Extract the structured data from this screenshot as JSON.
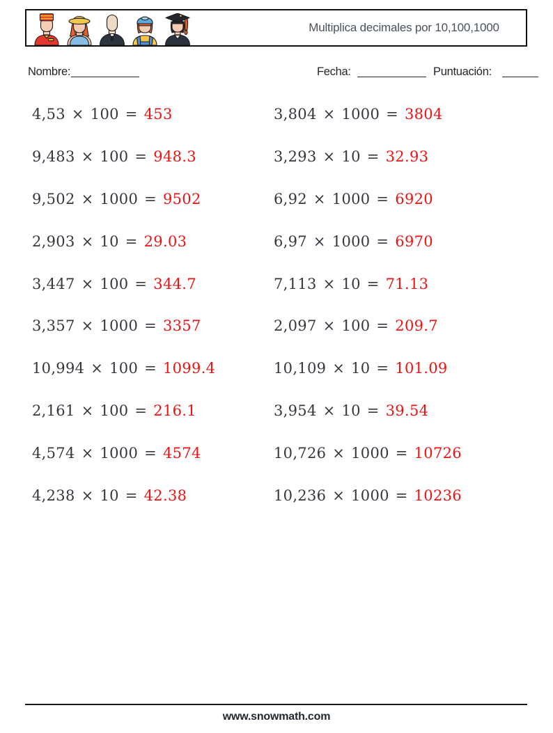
{
  "header": {
    "title": "Multiplica decimales por 10,100,1000",
    "avatars": [
      "bellhop-avatar",
      "gardener-avatar",
      "priest-avatar",
      "worker-avatar",
      "graduate-avatar"
    ]
  },
  "fields": {
    "name_label": "Nombre:",
    "date_label": "Fecha:",
    "score_label": "Puntuación:"
  },
  "problems": {
    "left": [
      {
        "expression": "4,53 × 100 =",
        "answer": "453"
      },
      {
        "expression": "9,483 × 100 =",
        "answer": "948.3"
      },
      {
        "expression": "9,502 × 1000 =",
        "answer": "9502"
      },
      {
        "expression": "2,903 × 10 =",
        "answer": "29.03"
      },
      {
        "expression": "3,447 × 100 =",
        "answer": "344.7"
      },
      {
        "expression": "3,357 × 1000 =",
        "answer": "3357"
      },
      {
        "expression": "10,994 × 100 =",
        "answer": "1099.4"
      },
      {
        "expression": "2,161 × 100 =",
        "answer": "216.1"
      },
      {
        "expression": "4,574 × 1000 =",
        "answer": "4574"
      },
      {
        "expression": "4,238 × 10 =",
        "answer": "42.38"
      }
    ],
    "right": [
      {
        "expression": "3,804 × 1000 =",
        "answer": "3804"
      },
      {
        "expression": "3,293 × 10 =",
        "answer": "32.93"
      },
      {
        "expression": "6,92 × 1000 =",
        "answer": "6920"
      },
      {
        "expression": "6,97 × 1000 =",
        "answer": "6970"
      },
      {
        "expression": "7,113 × 10 =",
        "answer": "71.13"
      },
      {
        "expression": "2,097 × 100 =",
        "answer": "209.7"
      },
      {
        "expression": "10,109 × 10 =",
        "answer": "101.09"
      },
      {
        "expression": "3,954 × 10 =",
        "answer": "39.54"
      },
      {
        "expression": "10,726 × 1000 =",
        "answer": "10726"
      },
      {
        "expression": "10,236 × 1000 =",
        "answer": "10236"
      }
    ]
  },
  "footer": {
    "url": "www.snowmath.com"
  },
  "colors": {
    "answer_red": "#f01212",
    "problem_text": "#34383e",
    "title_gray": "#49525b",
    "border_dark": "#101010"
  }
}
